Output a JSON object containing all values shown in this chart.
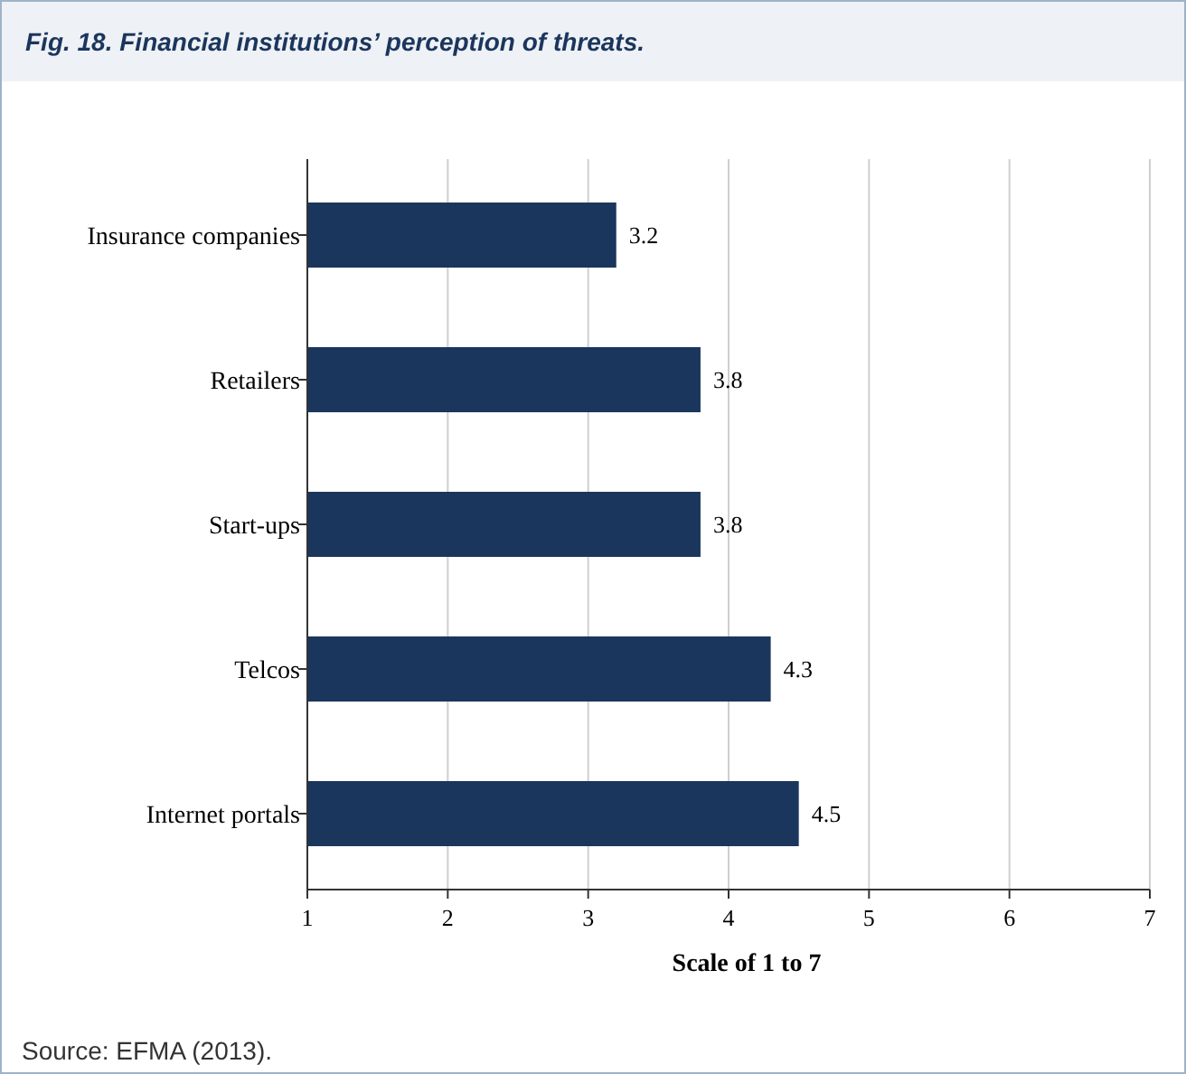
{
  "chart_data": {
    "type": "bar",
    "orientation": "horizontal",
    "title": "Fig. 18. Financial institutions’ perception of threats.",
    "xlabel": "Scale of 1 to 7",
    "categories": [
      "Insurance companies",
      "Retailers",
      "Start-ups",
      "Telcos",
      "Internet portals"
    ],
    "values": [
      3.2,
      3.8,
      3.8,
      4.3,
      4.5
    ],
    "color": "#1b365d",
    "data_labels": true,
    "xlim": [
      1,
      7
    ],
    "xticks": [
      1,
      2,
      3,
      4,
      5,
      6,
      7
    ],
    "grid": "x",
    "annotations": [
      "Source: EFMA (2013)."
    ]
  }
}
